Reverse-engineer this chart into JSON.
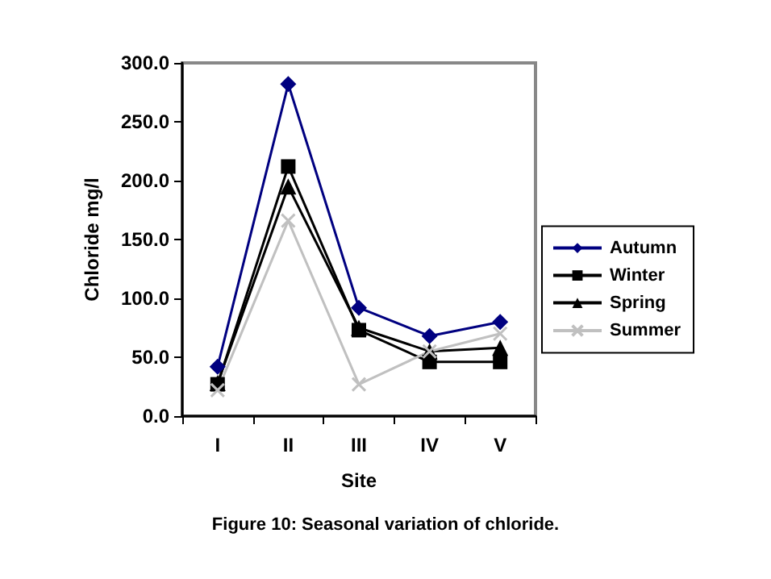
{
  "chart_data": {
    "type": "line",
    "xlabel": "Site",
    "ylabel": "Chloride mg/l",
    "annotations": [
      "Figure 10: Seasonal variation of chloride."
    ],
    "categories": [
      "I",
      "II",
      "III",
      "IV",
      "V"
    ],
    "series": [
      {
        "name": "Autumn",
        "color": "#000080",
        "marker": "diamond",
        "values": [
          42,
          282,
          92,
          68,
          80
        ]
      },
      {
        "name": "Winter",
        "color": "#000000",
        "marker": "square",
        "values": [
          27,
          212,
          73,
          46,
          46
        ]
      },
      {
        "name": "Spring",
        "color": "#000000",
        "marker": "triangle",
        "values": [
          28,
          195,
          75,
          55,
          58
        ]
      },
      {
        "name": "Summer",
        "color": "#c0c0c0",
        "marker": "cross",
        "values": [
          22,
          166,
          27,
          55,
          70
        ]
      }
    ],
    "ylim": [
      0,
      300
    ],
    "yticks": [
      {
        "value": 0,
        "label": "0.0"
      },
      {
        "value": 50,
        "label": "50.0"
      },
      {
        "value": 100,
        "label": "100.0"
      },
      {
        "value": 150,
        "label": "150.0"
      },
      {
        "value": 200,
        "label": "200.0"
      },
      {
        "value": 250,
        "label": "250.0"
      },
      {
        "value": 300,
        "label": "300.0"
      }
    ],
    "grid": false,
    "legend": "right"
  }
}
